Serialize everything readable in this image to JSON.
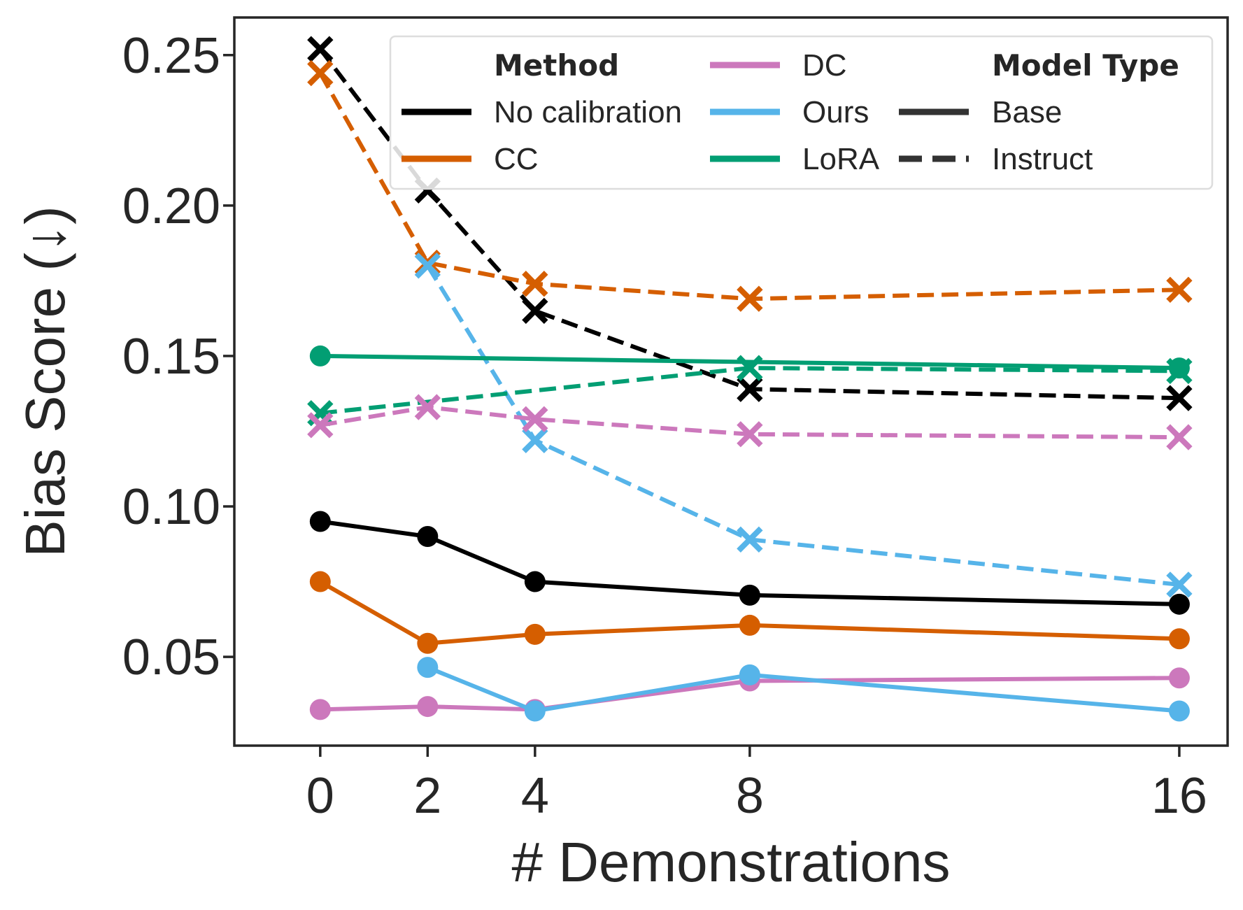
{
  "chart_data": {
    "type": "line",
    "xlabel": "# Demonstrations",
    "ylabel": "Bias Score (↓)",
    "x": [
      0,
      2,
      4,
      8,
      16
    ],
    "x_ticks": [
      "0",
      "2",
      "4",
      "8",
      "16"
    ],
    "y_ticks": [
      "0.05",
      "0.10",
      "0.15",
      "0.20",
      "0.25"
    ],
    "y_tick_values": [
      0.05,
      0.1,
      0.15,
      0.2,
      0.25
    ],
    "xlim": [
      -1.6,
      16.9
    ],
    "ylim": [
      0.0205,
      0.2625
    ],
    "grid": false,
    "legend_position": "top-right",
    "legend": {
      "method_title": "Method",
      "model_type_title": "Model Type",
      "methods": [
        {
          "label": "No calibration",
          "color": "#000000"
        },
        {
          "label": "CC",
          "color": "#d55e00"
        },
        {
          "label": "DC",
          "color": "#cc78bc"
        },
        {
          "label": "Ours",
          "color": "#56b4e9"
        },
        {
          "label": "LoRA",
          "color": "#029e73"
        }
      ],
      "model_types": [
        {
          "label": "Base",
          "style": "solid"
        },
        {
          "label": "Instruct",
          "style": "dashed"
        }
      ]
    },
    "series": [
      {
        "name": "No calibration",
        "model_type": "Instruct",
        "color": "#000000",
        "x": [
          0,
          2,
          4,
          8,
          16
        ],
        "values": [
          0.252,
          0.205,
          0.165,
          0.139,
          0.136
        ]
      },
      {
        "name": "CC",
        "model_type": "Instruct",
        "color": "#d55e00",
        "x": [
          0,
          2,
          4,
          8,
          16
        ],
        "values": [
          0.244,
          0.181,
          0.174,
          0.169,
          0.172
        ]
      },
      {
        "name": "Ours",
        "model_type": "Instruct",
        "color": "#56b4e9",
        "x": [
          2,
          4,
          8,
          16
        ],
        "values": [
          0.18,
          0.122,
          0.089,
          0.074
        ]
      },
      {
        "name": "LoRA",
        "model_type": "Instruct",
        "color": "#029e73",
        "x": [
          0,
          8,
          16
        ],
        "values": [
          0.131,
          0.146,
          0.145
        ]
      },
      {
        "name": "DC",
        "model_type": "Instruct",
        "color": "#cc78bc",
        "x": [
          0,
          2,
          4,
          8,
          16
        ],
        "values": [
          0.127,
          0.133,
          0.129,
          0.124,
          0.123
        ]
      },
      {
        "name": "LoRA",
        "model_type": "Base",
        "color": "#029e73",
        "x": [
          0,
          16
        ],
        "values": [
          0.15,
          0.146
        ]
      },
      {
        "name": "No calibration",
        "model_type": "Base",
        "color": "#000000",
        "x": [
          0,
          2,
          4,
          8,
          16
        ],
        "values": [
          0.095,
          0.09,
          0.075,
          0.0705,
          0.0675
        ]
      },
      {
        "name": "CC",
        "model_type": "Base",
        "color": "#d55e00",
        "x": [
          0,
          2,
          4,
          8,
          16
        ],
        "values": [
          0.075,
          0.0545,
          0.0575,
          0.0605,
          0.056
        ]
      },
      {
        "name": "DC",
        "model_type": "Base",
        "color": "#cc78bc",
        "x": [
          0,
          2,
          4,
          8,
          16
        ],
        "values": [
          0.0325,
          0.0335,
          0.0325,
          0.042,
          0.043
        ]
      },
      {
        "name": "Ours",
        "model_type": "Base",
        "color": "#56b4e9",
        "x": [
          2,
          4,
          8,
          16
        ],
        "values": [
          0.0465,
          0.032,
          0.044,
          0.032
        ]
      }
    ]
  }
}
